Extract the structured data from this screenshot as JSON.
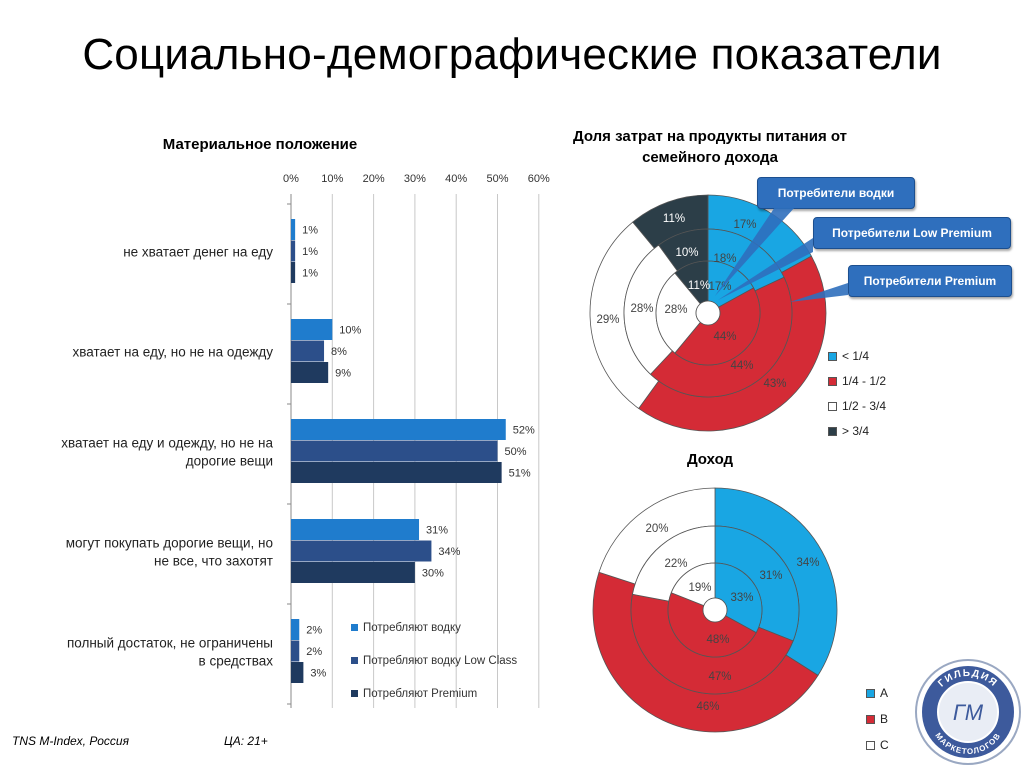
{
  "page": {
    "title": "Социально-демографические показатели",
    "footer_left": "TNS M-Index, Россия",
    "footer_right": "ЦА: 21+",
    "logo_text_top": "ГИЛЬДИЯ",
    "logo_text_bottom": "МАРКЕТОЛОГОВ",
    "logo_monogram": "ГМ"
  },
  "chart_data": [
    {
      "id": "material",
      "type": "bar",
      "orientation": "horizontal",
      "title": "Материальное положение",
      "categories": [
        "не хватает денег на еду",
        "хватает на еду, но не на одежду",
        "хватает на еду и одежду, но не на дорогие вещи",
        "могут покупать дорогие вещи, но не все, что захотят",
        "полный достаток, не ограничены в средствах"
      ],
      "series": [
        {
          "name": "Потребляют водку",
          "values": [
            1,
            10,
            52,
            31,
            2
          ],
          "labels": [
            "1%",
            "10%",
            "52%",
            "31%",
            "2%"
          ],
          "color": "#1f7ccd"
        },
        {
          "name": "Потребляют водку Low Class",
          "values": [
            1,
            8,
            50,
            34,
            2
          ],
          "labels": [
            "1%",
            "8%",
            "50%",
            "34%",
            "2%"
          ],
          "color": "#2c4f8a"
        },
        {
          "name": "Потребляют Premium",
          "values": [
            1,
            9,
            51,
            30,
            3
          ],
          "labels": [
            "1%",
            "9%",
            "51%",
            "30%",
            "3%"
          ],
          "color": "#1f3a5f"
        }
      ],
      "xlim": [
        0,
        60
      ],
      "xticks": [
        0,
        10,
        20,
        30,
        40,
        50,
        60
      ],
      "xtick_labels": [
        "0%",
        "10%",
        "20%",
        "30%",
        "40%",
        "50%",
        "60%"
      ],
      "grid": true,
      "legend_position": "bottom-right"
    },
    {
      "id": "food_share",
      "type": "pie",
      "variant": "nested-donut",
      "title": "Доля затрат на продукты питания от семейного дохода",
      "categories": [
        "< 1/4",
        "1/4 - 1/2",
        "1/2 - 3/4",
        "> 3/4"
      ],
      "colors": [
        "#19a6e3",
        "#d42b36",
        "#ffffff",
        "#2c3e48"
      ],
      "rings": [
        {
          "name": "Потребители Premium",
          "values": [
            17,
            44,
            28,
            11
          ],
          "labels": [
            "17%",
            "44%",
            "28%",
            "11%"
          ]
        },
        {
          "name": "Потребители Low Premium",
          "values": [
            18,
            44,
            28,
            10
          ],
          "labels": [
            "18%",
            "44%",
            "28%",
            "10%"
          ]
        },
        {
          "name": "Потребители водки",
          "values": [
            17,
            43,
            29,
            11
          ],
          "labels": [
            "17%",
            "43%",
            "29%",
            "11%"
          ]
        }
      ],
      "legend_position": "right"
    },
    {
      "id": "income",
      "type": "pie",
      "variant": "nested-donut",
      "title": "Доход",
      "categories": [
        "A",
        "B",
        "C"
      ],
      "colors": [
        "#19a6e3",
        "#d42b36",
        "#ffffff"
      ],
      "rings": [
        {
          "values": [
            33,
            48,
            19
          ],
          "labels": [
            "33%",
            "48%",
            "19%"
          ]
        },
        {
          "values": [
            31,
            47,
            22
          ],
          "labels": [
            "31%",
            "47%",
            "22%"
          ]
        },
        {
          "values": [
            34,
            46,
            20
          ],
          "labels": [
            "34%",
            "46%",
            "20%"
          ]
        }
      ],
      "legend_position": "bottom-right"
    }
  ]
}
